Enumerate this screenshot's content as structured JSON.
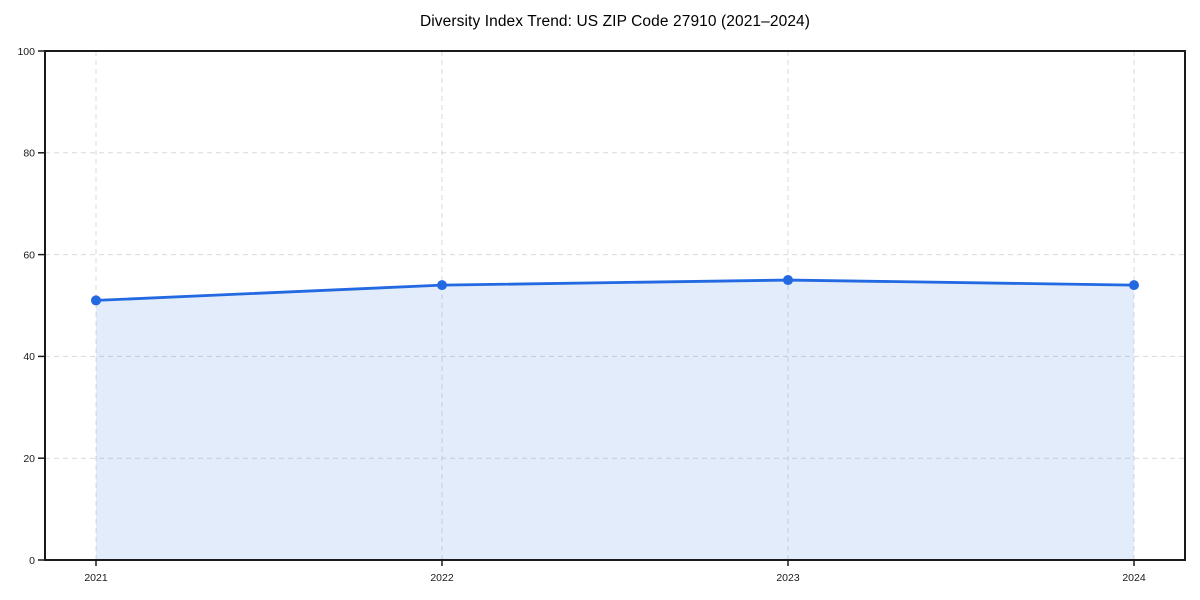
{
  "chart_data": {
    "type": "area",
    "title": "Diversity Index Trend: US ZIP Code 27910 (2021–2024)",
    "categories": [
      "2021",
      "2022",
      "2023",
      "2024"
    ],
    "values": [
      51,
      54,
      55,
      54
    ],
    "xlabel": "",
    "ylabel": "",
    "ylim": [
      0,
      100
    ],
    "yticks": [
      0,
      20,
      40,
      60,
      80,
      100
    ],
    "grid": "dashed-both-axes",
    "legend": "none",
    "colors": {
      "line": "#2369e1",
      "marker": "#2369e1",
      "fill": "#2369e1",
      "fill_opacity": 0.13,
      "gridline": "#d9d9d9",
      "axis": "#1a1a1a",
      "tick_text": "#1a1a1a",
      "title_text": "#000000",
      "background": "#ffffff"
    }
  }
}
